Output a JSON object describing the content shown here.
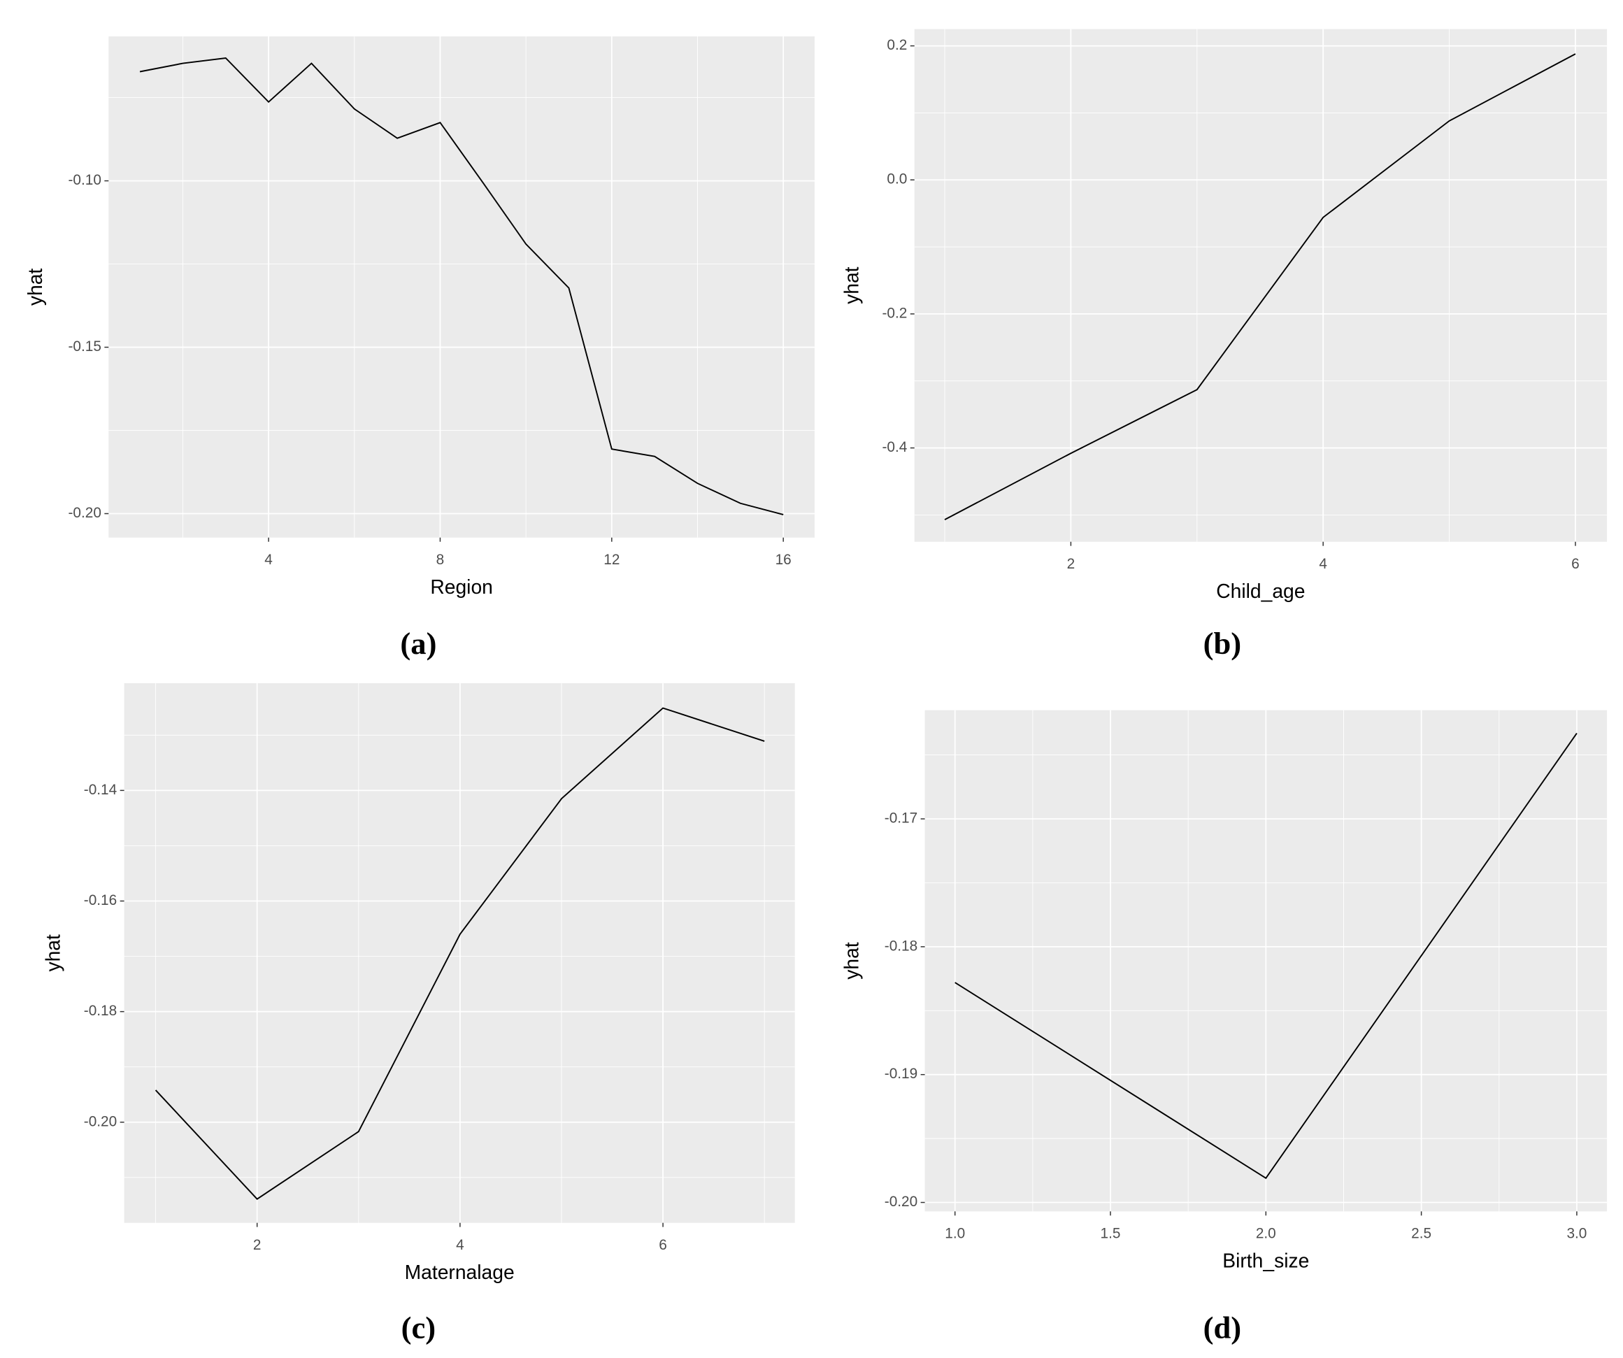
{
  "chart_data": [
    {
      "type": "line",
      "caption": "(a)",
      "x_label": "Region",
      "y_label": "yhat",
      "x": [
        1,
        2,
        3,
        4,
        5,
        6,
        7,
        8,
        9,
        10,
        11,
        12,
        13,
        14,
        15,
        16
      ],
      "series": [
        {
          "color": "#000000",
          "values": [
            -0.0672,
            -0.0647,
            -0.0631,
            -0.0763,
            -0.0647,
            -0.0784,
            -0.0872,
            -0.0825,
            -0.1006,
            -0.119,
            -0.1322,
            -0.1806,
            -0.1828,
            -0.1909,
            -0.1969,
            -0.2003
          ]
        }
      ],
      "xlim": [
        0.27,
        16.73
      ],
      "xticks": [
        4,
        8,
        12,
        16
      ],
      "ylim": [
        -0.2072,
        -0.0566
      ],
      "yticks": [
        {
          "value": -0.2,
          "label": "-0.20"
        },
        {
          "value": -0.15,
          "label": "-0.15"
        },
        {
          "value": -0.1,
          "label": "-0.10"
        }
      ],
      "grid": true
    },
    {
      "type": "line",
      "caption": "(b)",
      "x_label": "Child_age",
      "y_label": "yhat",
      "x": [
        1,
        2,
        3,
        4,
        5,
        6
      ],
      "series": [
        {
          "color": "#000000",
          "values": [
            -0.507,
            -0.408,
            -0.313,
            -0.056,
            0.088,
            0.188
          ]
        }
      ],
      "xlim": [
        0.76,
        6.25
      ],
      "xticks": [
        2,
        4,
        6
      ],
      "ylim": [
        -0.54,
        0.225
      ],
      "yticks": [
        -0.4,
        -0.2,
        {
          "value": 0,
          "label": "0.0"
        },
        0.2
      ],
      "grid": true
    },
    {
      "type": "line",
      "caption": "(c)",
      "x_label": "Maternalage",
      "y_label": "yhat",
      "x": [
        1,
        2,
        3,
        4,
        5,
        6,
        7
      ],
      "series": [
        {
          "color": "#000000",
          "values": [
            -0.1942,
            -0.2139,
            -0.2017,
            -0.166,
            -0.1415,
            -0.1251,
            -0.1311
          ]
        }
      ],
      "xlim": [
        0.69,
        7.3
      ],
      "xticks": [
        2,
        4,
        6
      ],
      "ylim": [
        -0.2182,
        -0.1206
      ],
      "yticks": [
        {
          "value": -0.2,
          "label": "-0.20"
        },
        -0.18,
        -0.16,
        -0.14
      ],
      "grid": true
    },
    {
      "type": "line",
      "caption": "(d)",
      "x_label": "Birth_size",
      "y_label": "yhat",
      "x": [
        1,
        2,
        3
      ],
      "series": [
        {
          "color": "#000000",
          "values": [
            -0.1828,
            -0.1981,
            -0.1633
          ]
        }
      ],
      "xlim": [
        0.903,
        3.097
      ],
      "xticks": [
        {
          "value": 1,
          "label": "1.0"
        },
        1.5,
        {
          "value": 2,
          "label": "2.0"
        },
        2.5,
        {
          "value": 3,
          "label": "3.0"
        }
      ],
      "ylim": [
        -0.2007,
        -0.1615
      ],
      "yticks": [
        {
          "value": -0.2,
          "label": "-0.20"
        },
        -0.19,
        -0.18,
        -0.17
      ],
      "grid": true
    }
  ]
}
